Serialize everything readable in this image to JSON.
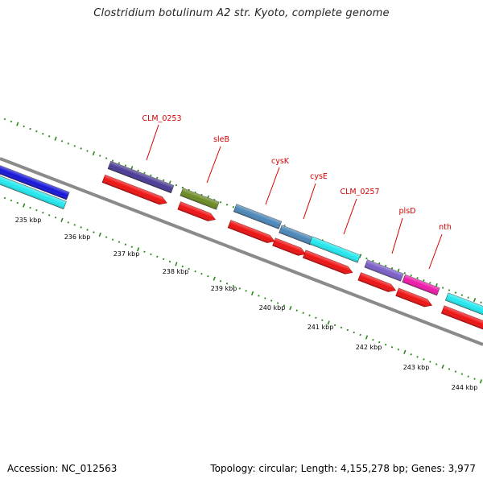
{
  "title": "Clostridium botulinum A2 str. Kyoto, complete genome",
  "footer": {
    "accession": "Accession: NC_012563",
    "summary": "Topology: circular; Length: 4,155,278 bp; Genes: 3,977"
  },
  "colors": {
    "backbone": "#8a8a8a",
    "tick": "#2a8a1a",
    "label": "#d40000",
    "cds_arrow": "#ee1111",
    "cyan": "#22e8ee",
    "blue": "#1515d8",
    "indigo": "#4a3a96",
    "olive": "#6a8a22",
    "steel": "#4a86b8",
    "purple": "#7a5ec8",
    "magenta": "#ee1aa8"
  },
  "axis": {
    "unit": "kbp",
    "labels": [
      "235 kbp",
      "236 kbp",
      "237 kbp",
      "238 kbp",
      "239 kbp",
      "240 kbp",
      "241 kbp",
      "242 kbp",
      "243 kbp",
      "244 kbp"
    ]
  },
  "genes": [
    {
      "name": "",
      "category": "blue"
    },
    {
      "name": "",
      "category": "cyan"
    },
    {
      "name": "CLM_0253",
      "category": "indigo"
    },
    {
      "name": "",
      "category": "cds_arrow"
    },
    {
      "name": "sleB",
      "category": "olive"
    },
    {
      "name": "",
      "category": "cds_arrow"
    },
    {
      "name": "cysK",
      "category": "steel"
    },
    {
      "name": "",
      "category": "cds_arrow"
    },
    {
      "name": "cysE",
      "category": "steel"
    },
    {
      "name": "",
      "category": "cds_arrow"
    },
    {
      "name": "CLM_0257",
      "category": "cyan"
    },
    {
      "name": "",
      "category": "cds_arrow"
    },
    {
      "name": "plsD",
      "category": "purple"
    },
    {
      "name": "",
      "category": "cds_arrow"
    },
    {
      "name": "nth",
      "category": "magenta"
    },
    {
      "name": "",
      "category": "cds_arrow"
    },
    {
      "name": "",
      "category": "cyan"
    },
    {
      "name": "",
      "category": "cds_arrow"
    }
  ]
}
